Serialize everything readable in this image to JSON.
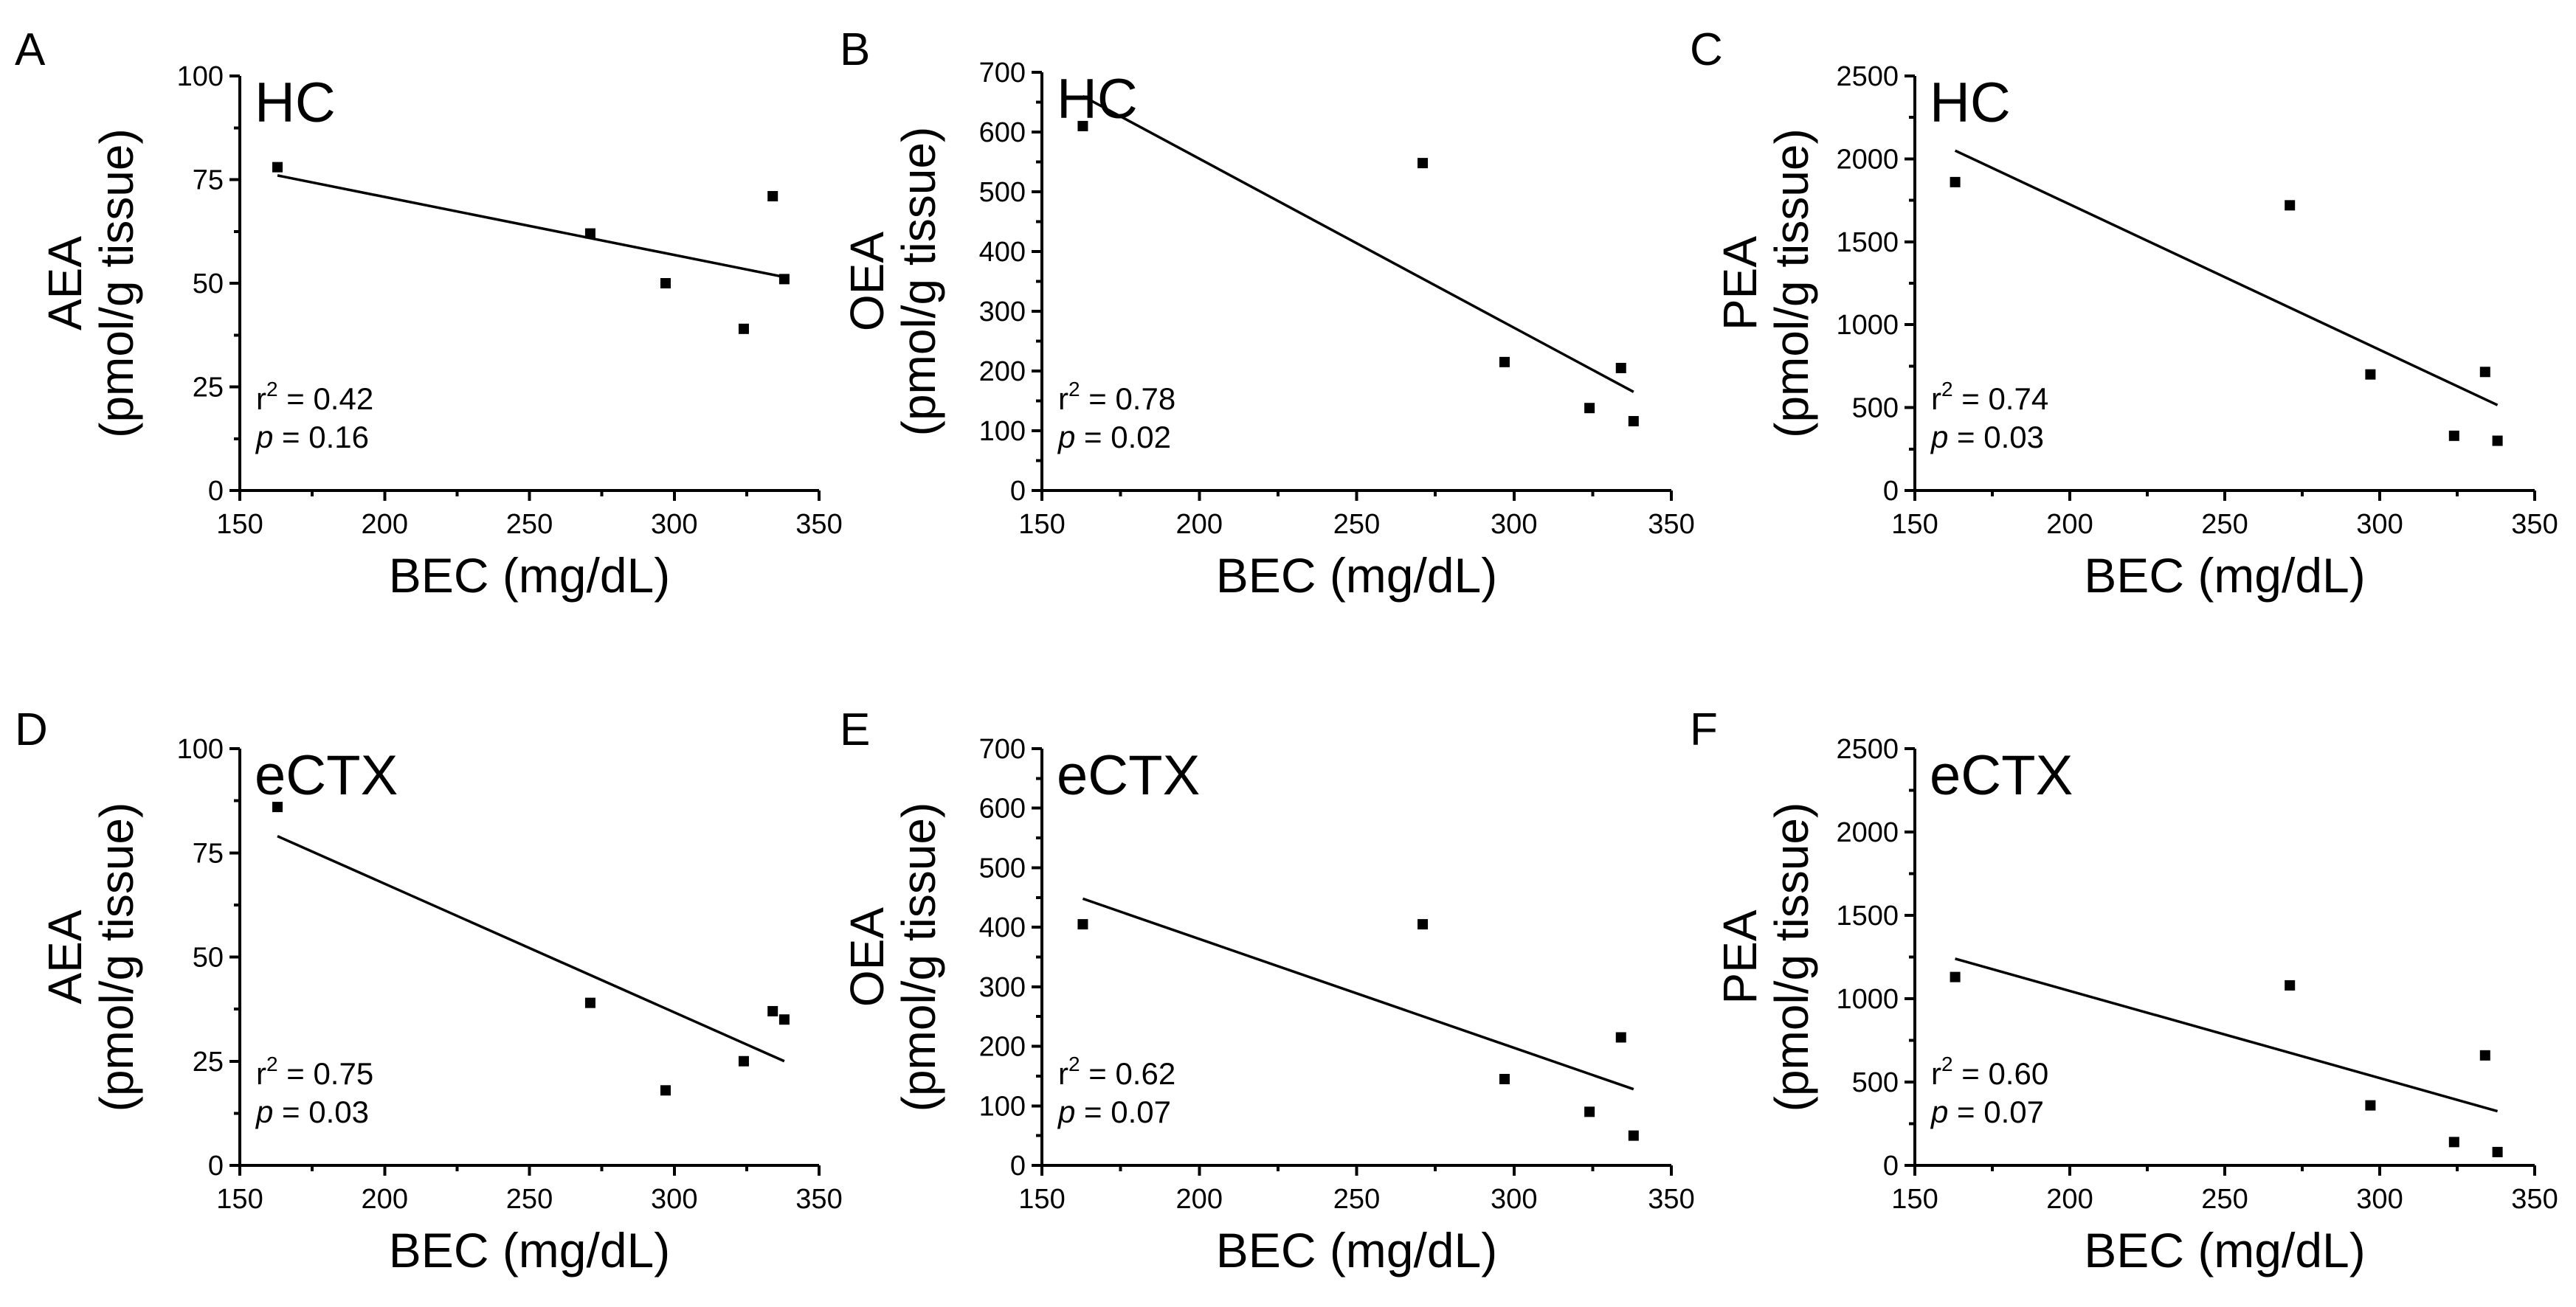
{
  "chart_data": [
    {
      "type": "scatter",
      "panel": "A",
      "region": "HC",
      "ylabel_top": "AEA",
      "ylabel_bottom": "(pmol/g tissue)",
      "xlabel": "BEC (mg/dL)",
      "xlim": [
        150,
        350
      ],
      "ylim": [
        0,
        100
      ],
      "xticks": [
        150,
        200,
        250,
        300,
        350
      ],
      "yticks": [
        0,
        25,
        50,
        75,
        100
      ],
      "points": [
        [
          163,
          78
        ],
        [
          271,
          62
        ],
        [
          297,
          50
        ],
        [
          324,
          39
        ],
        [
          334,
          71
        ],
        [
          338,
          51
        ]
      ],
      "fit": [
        [
          163,
          76
        ],
        [
          338,
          51.5
        ]
      ],
      "r2_label": "r",
      "r2_sup": "2",
      "r2_value": " = 0.42",
      "p_label": "p",
      "p_value": " = 0.16"
    },
    {
      "type": "scatter",
      "panel": "B",
      "region": "HC",
      "ylabel_top": "OEA",
      "ylabel_bottom": "(pmol/g tissue)",
      "xlabel": "BEC (mg/dL)",
      "xlim": [
        150,
        350
      ],
      "ylim": [
        0,
        700
      ],
      "xticks": [
        150,
        200,
        250,
        300,
        350
      ],
      "yticks": [
        0,
        100,
        200,
        300,
        400,
        500,
        600,
        700
      ],
      "points": [
        [
          163,
          610
        ],
        [
          271,
          548
        ],
        [
          297,
          215
        ],
        [
          324,
          138
        ],
        [
          334,
          205
        ],
        [
          338,
          116
        ]
      ],
      "fit": [
        [
          163,
          660
        ],
        [
          338,
          165
        ]
      ],
      "r2_label": "r",
      "r2_sup": "2",
      "r2_value": " = 0.78",
      "p_label": "p",
      "p_value": " = 0.02"
    },
    {
      "type": "scatter",
      "panel": "C",
      "region": "HC",
      "ylabel_top": "PEA",
      "ylabel_bottom": "(pmol/g tissue)",
      "xlabel": "BEC (mg/dL)",
      "xlim": [
        150,
        350
      ],
      "ylim": [
        0,
        2500
      ],
      "xticks": [
        150,
        200,
        250,
        300,
        350
      ],
      "yticks": [
        0,
        500,
        1000,
        1500,
        2000,
        2500
      ],
      "points": [
        [
          163,
          1860
        ],
        [
          271,
          1720
        ],
        [
          297,
          700
        ],
        [
          324,
          330
        ],
        [
          334,
          715
        ],
        [
          338,
          300
        ]
      ],
      "fit": [
        [
          163,
          2050
        ],
        [
          338,
          515
        ]
      ],
      "r2_label": "r",
      "r2_sup": "2",
      "r2_value": " = 0.74",
      "p_label": "p",
      "p_value": " = 0.03"
    },
    {
      "type": "scatter",
      "panel": "D",
      "region": "eCTX",
      "ylabel_top": "AEA",
      "ylabel_bottom": "(pmol/g tissue)",
      "xlabel": "BEC (mg/dL)",
      "xlim": [
        150,
        350
      ],
      "ylim": [
        0,
        100
      ],
      "xticks": [
        150,
        200,
        250,
        300,
        350
      ],
      "yticks": [
        0,
        25,
        50,
        75,
        100
      ],
      "points": [
        [
          163,
          86
        ],
        [
          271,
          39
        ],
        [
          297,
          18
        ],
        [
          324,
          25
        ],
        [
          334,
          37
        ],
        [
          338,
          35
        ]
      ],
      "fit": [
        [
          163,
          79
        ],
        [
          338,
          25
        ]
      ],
      "r2_label": "r",
      "r2_sup": "2",
      "r2_value": " = 0.75",
      "p_label": "p",
      "p_value": " = 0.03"
    },
    {
      "type": "scatter",
      "panel": "E",
      "region": "eCTX",
      "ylabel_top": "OEA",
      "ylabel_bottom": "(pmol/g tissue)",
      "xlabel": "BEC (mg/dL)",
      "xlim": [
        150,
        350
      ],
      "ylim": [
        0,
        700
      ],
      "xticks": [
        150,
        200,
        250,
        300,
        350
      ],
      "yticks": [
        0,
        100,
        200,
        300,
        400,
        500,
        600,
        700
      ],
      "points": [
        [
          163,
          405
        ],
        [
          271,
          405
        ],
        [
          297,
          145
        ],
        [
          324,
          90
        ],
        [
          334,
          215
        ],
        [
          338,
          50
        ]
      ],
      "fit": [
        [
          163,
          448
        ],
        [
          338,
          128
        ]
      ],
      "r2_label": "r",
      "r2_sup": "2",
      "r2_value": " = 0.62",
      "p_label": "p",
      "p_value": " = 0.07"
    },
    {
      "type": "scatter",
      "panel": "F",
      "region": "eCTX",
      "ylabel_top": "PEA",
      "ylabel_bottom": "(pmol/g tissue)",
      "xlabel": "BEC (mg/dL)",
      "xlim": [
        150,
        350
      ],
      "ylim": [
        0,
        2500
      ],
      "xticks": [
        150,
        200,
        250,
        300,
        350
      ],
      "yticks": [
        0,
        500,
        1000,
        1500,
        2000,
        2500
      ],
      "points": [
        [
          163,
          1130
        ],
        [
          271,
          1080
        ],
        [
          297,
          360
        ],
        [
          324,
          140
        ],
        [
          334,
          660
        ],
        [
          338,
          80
        ]
      ],
      "fit": [
        [
          163,
          1240
        ],
        [
          338,
          325
        ]
      ],
      "r2_label": "r",
      "r2_sup": "2",
      "r2_value": " = 0.60",
      "p_label": "p",
      "p_value": " = 0.07"
    }
  ]
}
